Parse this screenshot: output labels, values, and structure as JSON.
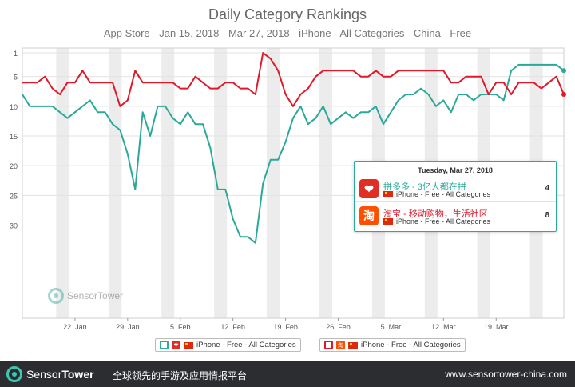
{
  "header": {
    "title": "Daily Category Rankings",
    "subtitle": "App Store - Jan 15, 2018 - Mar 27, 2018 - iPhone - All Categories - China - Free"
  },
  "tooltip": {
    "date": "Tuesday, Mar 27, 2018",
    "rows": [
      {
        "name": "拼多多 - 3亿人都在拼",
        "meta": "iPhone - Free - All Categories",
        "rank": "4",
        "color": "#e02e24"
      },
      {
        "name": "淘宝 - 移动购物，生活社区",
        "meta": "iPhone - Free - All Categories",
        "rank": "8",
        "color": "#ff5000"
      }
    ]
  },
  "watermark": "SensorTower",
  "legend": [
    {
      "label": "iPhone - Free - All Categories",
      "color": "#2aa99a",
      "icon_color": "#e02e24"
    },
    {
      "label": "iPhone - Free - All Categories",
      "color": "#e0192a",
      "icon_color": "#ff5000"
    }
  ],
  "footer": {
    "brand_a": "Sensor",
    "brand_b": "Tower",
    "slogan": "全球领先的手游及应用情报平台",
    "url": "www.sensortower-china.com"
  },
  "chart_data": {
    "type": "line",
    "x_start": "Jan 15, 2018",
    "x_end": "Mar 27, 2018",
    "x_tick_labels": [
      "22. Jan",
      "29. Jan",
      "5. Feb",
      "12. Feb",
      "19. Feb",
      "26. Feb",
      "5. Mar",
      "12. Mar",
      "19. Mar"
    ],
    "y_tick_labels": [
      "1",
      "5",
      "10",
      "15",
      "20",
      "25",
      "30"
    ],
    "y_reversed": true,
    "ylim": [
      1,
      36
    ],
    "colors": {
      "series_a": "#2aa99a",
      "series_b": "#e0192a"
    },
    "series": [
      {
        "name": "拼多多 - 3亿人都在拼",
        "values": [
          8,
          10,
          10,
          10,
          10,
          11,
          12,
          11,
          10,
          9,
          11,
          11,
          13,
          14,
          18,
          24,
          11,
          15,
          10,
          10,
          12,
          13,
          11,
          13,
          13,
          17,
          24,
          24,
          29,
          32,
          32,
          33,
          23,
          19,
          19,
          16,
          12,
          10,
          13,
          12,
          10,
          13,
          12,
          11,
          12,
          11,
          11,
          10,
          13,
          11,
          9,
          8,
          8,
          7,
          8,
          10,
          9,
          11,
          8,
          8,
          9,
          8,
          8,
          8,
          9,
          4,
          3,
          3,
          3,
          3,
          3,
          3,
          4
        ]
      },
      {
        "name": "淘宝 - 移动购物，生活社区",
        "values": [
          6,
          6,
          6,
          5,
          7,
          8,
          6,
          6,
          4,
          6,
          6,
          6,
          6,
          10,
          9,
          4,
          6,
          6,
          6,
          6,
          6,
          7,
          7,
          5,
          6,
          7,
          7,
          6,
          6,
          7,
          7,
          8,
          1,
          2,
          4,
          8,
          10,
          8,
          7,
          5,
          4,
          4,
          4,
          4,
          4,
          5,
          5,
          4,
          5,
          5,
          4,
          4,
          4,
          4,
          4,
          4,
          4,
          6,
          6,
          5,
          5,
          5,
          8,
          6,
          6,
          8,
          6,
          6,
          6,
          7,
          6,
          5,
          8
        ]
      }
    ]
  }
}
